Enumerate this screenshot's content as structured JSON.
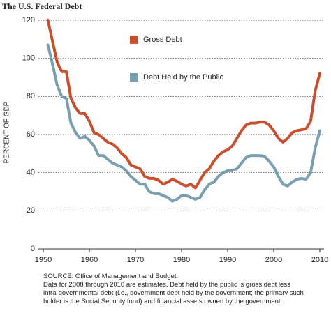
{
  "chart_data": {
    "type": "line",
    "title": "The U.S. Federal Debt",
    "y_label": "PERCENT OF GDP",
    "x": [
      1951,
      1952,
      1953,
      1954,
      1955,
      1956,
      1957,
      1958,
      1959,
      1960,
      1961,
      1962,
      1963,
      1964,
      1965,
      1966,
      1967,
      1968,
      1969,
      1970,
      1971,
      1972,
      1973,
      1974,
      1975,
      1976,
      1977,
      1978,
      1979,
      1980,
      1981,
      1982,
      1983,
      1984,
      1985,
      1986,
      1987,
      1988,
      1989,
      1990,
      1991,
      1992,
      1993,
      1994,
      1995,
      1996,
      1997,
      1998,
      1999,
      2000,
      2001,
      2002,
      2003,
      2004,
      2005,
      2006,
      2007,
      2008,
      2009,
      2010
    ],
    "series": [
      {
        "name": "Gross Debt",
        "color": "#c9502e",
        "values": [
          120,
          109,
          98,
          93,
          93,
          79,
          74,
          71,
          71,
          67,
          61,
          60,
          58,
          56,
          55,
          53,
          50,
          48,
          44,
          43,
          42,
          38,
          37,
          37,
          36,
          34,
          35,
          36.5,
          35.5,
          34,
          33,
          34,
          32,
          36,
          40,
          42,
          46,
          49,
          51,
          52,
          54,
          58,
          62,
          65,
          66,
          66,
          66.5,
          66.5,
          65,
          62,
          58,
          56,
          58,
          61,
          62,
          62.5,
          63,
          67,
          83,
          92
        ]
      },
      {
        "name": "Debt Held by the Public",
        "color": "#7a9fb0",
        "values": [
          107,
          97,
          86,
          80,
          79,
          66,
          61,
          58,
          59,
          57,
          54,
          49,
          49,
          47,
          45,
          44,
          43,
          41,
          38,
          36,
          34,
          34,
          30,
          29,
          29,
          28,
          27,
          25,
          26,
          28,
          28,
          27,
          26,
          27,
          31,
          34,
          35,
          38,
          40,
          41,
          41,
          42,
          45,
          48,
          49,
          49,
          49,
          48.5,
          46,
          43,
          38,
          34,
          33,
          35,
          36.5,
          37,
          36.5,
          40,
          53,
          62
        ]
      }
    ],
    "xlim": [
      1950,
      2010
    ],
    "xticks": [
      1950,
      1960,
      1970,
      1980,
      1990,
      2000,
      2010
    ],
    "ylim": [
      0,
      120
    ],
    "yticks": [
      0,
      20,
      40,
      60,
      80,
      100,
      120
    ],
    "grid": true,
    "source": "SOURCE: Office of Management and Budget.",
    "notes": [
      "Data for 2008 through 2010 are estimates. Debt held by the public is gross debt less",
      "intra-governmental debt (i.e., government debt held by the government; the primary such",
      "holder is the Social Security fund) and financial assets owned by the government."
    ]
  }
}
